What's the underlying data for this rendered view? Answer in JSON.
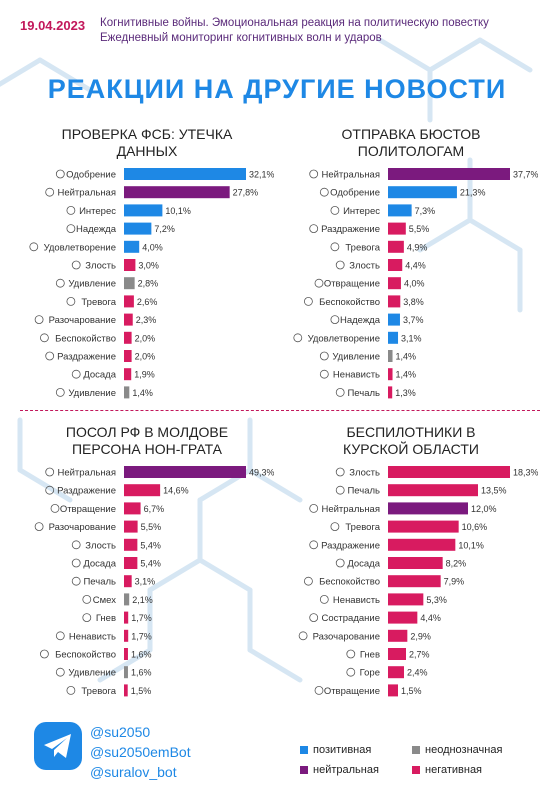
{
  "header": {
    "date": "19.04.2023",
    "subtitle1": "Когнитивные войны. Эмоциональная реакция на политическую повестку",
    "subtitle2": "Ежедневный мониторинг когнитивных волн и ударов"
  },
  "title": "РЕАКЦИИ НА ДРУГИЕ НОВОСТИ",
  "colors": {
    "positive": "#1e88e5",
    "ambiguous": "#8a8a8a",
    "neutral": "#7b1a7e",
    "negative": "#d81b60",
    "title_blue": "#1e88e5",
    "date": "#c2185b"
  },
  "handles": [
    "@su2050",
    "@su2050emBot",
    "@suralov_bot"
  ],
  "legend": {
    "positive": "позитивная",
    "ambiguous": "неоднозначная",
    "neutral": "нейтральная",
    "negative": "негативная"
  },
  "chart_data": [
    {
      "type": "bar",
      "orientation": "horizontal",
      "title_lines": [
        "ПРОВЕРКА ФСБ: УТЕЧКА",
        "ДАННЫХ"
      ],
      "unit": "%",
      "max": 32.1,
      "categories": [
        "Одобрение",
        "Нейтральная",
        "Интерес",
        "Надежда",
        "Удовлетворение",
        "Злость",
        "Удивление",
        "Тревога",
        "Разочарование",
        "Беспокойство",
        "Раздражение",
        "Досада",
        "Удивление"
      ],
      "values": [
        32.1,
        27.8,
        10.1,
        7.2,
        4.0,
        3.0,
        2.8,
        2.6,
        2.3,
        2.0,
        2.0,
        1.9,
        1.4
      ],
      "labels": [
        "32,1%",
        "27,8%",
        "10,1%",
        "7,2%",
        "4,0%",
        "3,0%",
        "2,8%",
        "2,6%",
        "2,3%",
        "2,0%",
        "2,0%",
        "1,9%",
        "1,4%"
      ],
      "kinds": [
        "positive",
        "neutral",
        "positive",
        "positive",
        "positive",
        "negative",
        "ambiguous",
        "negative",
        "negative",
        "negative",
        "negative",
        "negative",
        "ambiguous"
      ]
    },
    {
      "type": "bar",
      "orientation": "horizontal",
      "title_lines": [
        "ОТПРАВКА БЮСТОВ",
        "ПОЛИТОЛОГАМ"
      ],
      "unit": "%",
      "max": 37.7,
      "categories": [
        "Нейтральная",
        "Одобрение",
        "Интерес",
        "Раздражение",
        "Тревога",
        "Злость",
        "Отвращение",
        "Беспокойство",
        "Надежда",
        "Удовлетворение",
        "Удивление",
        "Ненависть",
        "Печаль"
      ],
      "values": [
        37.7,
        21.3,
        7.3,
        5.5,
        4.9,
        4.4,
        4.0,
        3.8,
        3.7,
        3.1,
        1.4,
        1.4,
        1.3
      ],
      "labels": [
        "37,7%",
        "21,3%",
        "7,3%",
        "5,5%",
        "4,9%",
        "4,4%",
        "4,0%",
        "3,8%",
        "3,7%",
        "3,1%",
        "1,4%",
        "1,4%",
        "1,3%"
      ],
      "kinds": [
        "neutral",
        "positive",
        "positive",
        "negative",
        "negative",
        "negative",
        "negative",
        "negative",
        "positive",
        "positive",
        "ambiguous",
        "negative",
        "negative"
      ]
    },
    {
      "type": "bar",
      "orientation": "horizontal",
      "title_lines": [
        "ПОСОЛ РФ В МОЛДОВЕ",
        "ПЕРСОНА НОН-ГРАТА"
      ],
      "unit": "%",
      "max": 49.3,
      "categories": [
        "Нейтральная",
        "Раздражение",
        "Отвращение",
        "Разочарование",
        "Злость",
        "Досада",
        "Печаль",
        "Смех",
        "Гнев",
        "Ненависть",
        "Беспокойство",
        "Удивление",
        "Тревога"
      ],
      "values": [
        49.3,
        14.6,
        6.7,
        5.5,
        5.4,
        5.4,
        3.1,
        2.1,
        1.7,
        1.7,
        1.6,
        1.6,
        1.5
      ],
      "labels": [
        "49,3%",
        "14,6%",
        "6,7%",
        "5,5%",
        "5,4%",
        "5,4%",
        "3,1%",
        "2,1%",
        "1,7%",
        "1,7%",
        "1,6%",
        "1,6%",
        "1,5%"
      ],
      "kinds": [
        "neutral",
        "negative",
        "negative",
        "negative",
        "negative",
        "negative",
        "negative",
        "ambiguous",
        "negative",
        "negative",
        "negative",
        "ambiguous",
        "negative"
      ]
    },
    {
      "type": "bar",
      "orientation": "horizontal",
      "title_lines": [
        "БЕСПИЛОТНИКИ В",
        "КУРСКОЙ ОБЛАСТИ"
      ],
      "unit": "%",
      "max": 18.3,
      "categories": [
        "Злость",
        "Печаль",
        "Нейтральная",
        "Тревога",
        "Раздражение",
        "Досада",
        "Беспокойство",
        "Ненависть",
        "Сострадание",
        "Разочарование",
        "Гнев",
        "Горе",
        "Отвращение"
      ],
      "values": [
        18.3,
        13.5,
        12.0,
        10.6,
        10.1,
        8.2,
        7.9,
        5.3,
        4.4,
        2.9,
        2.7,
        2.4,
        1.5
      ],
      "labels": [
        "18,3%",
        "13,5%",
        "12,0%",
        "10,6%",
        "10,1%",
        "8,2%",
        "7,9%",
        "5,3%",
        "4,4%",
        "2,9%",
        "2,7%",
        "2,4%",
        "1,5%"
      ],
      "kinds": [
        "negative",
        "negative",
        "neutral",
        "negative",
        "negative",
        "negative",
        "negative",
        "negative",
        "negative",
        "negative",
        "negative",
        "negative",
        "negative"
      ]
    }
  ]
}
